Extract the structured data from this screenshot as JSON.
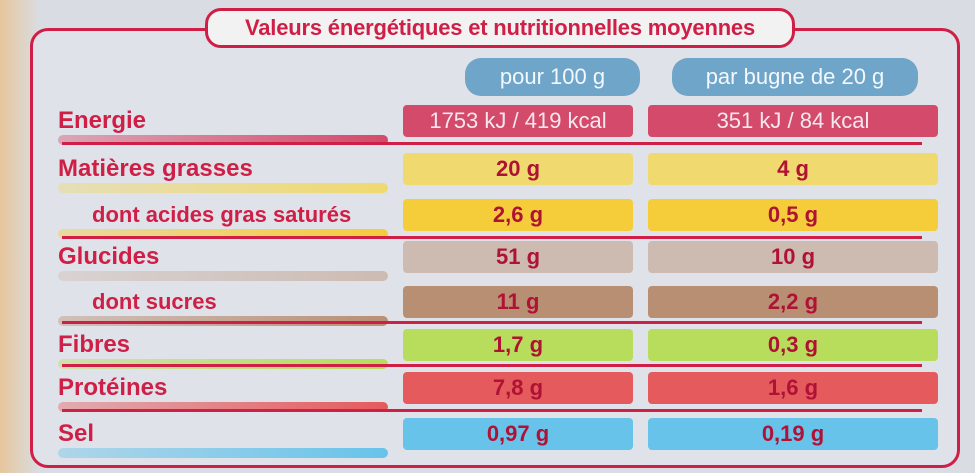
{
  "title": "Valeurs énergétiques et nutritionnelles moyennes",
  "columns": [
    "pour 100 g",
    "par bugne de 20 g"
  ],
  "rows": [
    {
      "label": "Energie",
      "per100": "1753 kJ / 419 kcal",
      "perServing": "351 kJ / 84 kcal",
      "color": "#d44a6a",
      "sub": false
    },
    {
      "label": "Matières grasses",
      "per100": "20 g",
      "perServing": "4 g",
      "color": "#f0d96e",
      "sub": false
    },
    {
      "label": "dont acides gras saturés",
      "per100": "2,6 g",
      "perServing": "0,5 g",
      "color": "#f5cc3a",
      "sub": true
    },
    {
      "label": "Glucides",
      "per100": "51 g",
      "perServing": "10 g",
      "color": "#cdbbb2",
      "sub": false
    },
    {
      "label": "dont sucres",
      "per100": "11 g",
      "perServing": "2,2 g",
      "color": "#b98f74",
      "sub": true
    },
    {
      "label": "Fibres",
      "per100": "1,7 g",
      "perServing": "0,3 g",
      "color": "#b8dc5b",
      "sub": false
    },
    {
      "label": "Protéines",
      "per100": "7,8 g",
      "perServing": "1,6 g",
      "color": "#e55a5c",
      "sub": false
    },
    {
      "label": "Sel",
      "per100": "0,97 g",
      "perServing": "0,19 g",
      "color": "#67c3ea",
      "sub": false
    }
  ]
}
